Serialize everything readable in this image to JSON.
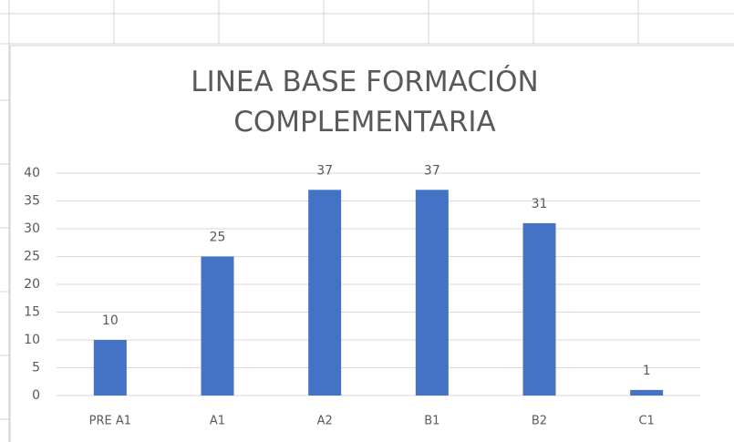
{
  "chart_data": {
    "type": "bar",
    "title": "LINEA BASE FORMACIÓN COMPLEMENTARIA",
    "categories": [
      "PRE A1",
      "A1",
      "A2",
      "B1",
      "B2",
      "C1"
    ],
    "values": [
      10,
      25,
      37,
      37,
      31,
      1
    ],
    "color": "#4472c4",
    "ylim": [
      0,
      40
    ],
    "yticks": [
      0,
      5,
      10,
      15,
      20,
      25,
      30,
      35,
      40
    ],
    "grid": true
  }
}
